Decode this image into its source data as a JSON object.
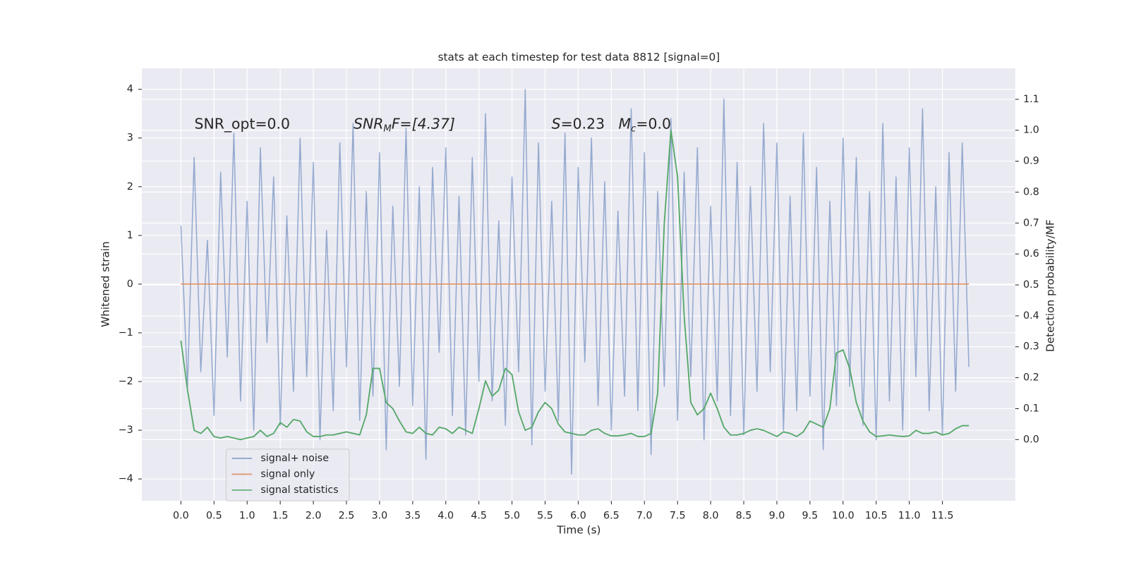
{
  "chart_data": {
    "type": "line",
    "title": "stats at each timestep for test data 8812 [signal=0]",
    "x_label": "Time (s)",
    "y_label": "Whitened strain",
    "y2_label": "Detection probability/MF",
    "annotations": [
      [
        "SNR_opt=0.0"
      ],
      [
        "SNR",
        "M",
        "F=[4.37]"
      ],
      [
        "S",
        "=0.23"
      ],
      [
        "M",
        "c",
        "=0.0"
      ]
    ],
    "x": [
      0.0,
      0.1,
      0.2,
      0.3,
      0.4,
      0.5,
      0.6,
      0.7,
      0.8,
      0.9,
      1.0,
      1.1,
      1.2,
      1.3,
      1.4,
      1.5,
      1.6,
      1.7,
      1.8,
      1.9,
      2.0,
      2.1,
      2.2,
      2.3,
      2.4,
      2.5,
      2.6,
      2.7,
      2.8,
      2.9,
      3.0,
      3.1,
      3.2,
      3.3,
      3.4,
      3.5,
      3.6,
      3.7,
      3.8,
      3.9,
      4.0,
      4.1,
      4.2,
      4.3,
      4.4,
      4.5,
      4.6,
      4.7,
      4.8,
      4.9,
      5.0,
      5.1,
      5.2,
      5.3,
      5.4,
      5.5,
      5.6,
      5.7,
      5.8,
      5.9,
      6.0,
      6.1,
      6.2,
      6.3,
      6.4,
      6.5,
      6.6,
      6.7,
      6.8,
      6.9,
      7.0,
      7.1,
      7.2,
      7.3,
      7.4,
      7.5,
      7.6,
      7.7,
      7.8,
      7.9,
      8.0,
      8.1,
      8.2,
      8.3,
      8.4,
      8.5,
      8.6,
      8.7,
      8.8,
      8.9,
      9.0,
      9.1,
      9.2,
      9.3,
      9.4,
      9.5,
      9.6,
      9.7,
      9.8,
      9.9,
      10.0,
      10.1,
      10.2,
      10.3,
      10.4,
      10.5,
      10.6,
      10.7,
      10.8,
      10.9,
      11.0,
      11.1,
      11.2,
      11.3,
      11.4,
      11.5,
      11.6,
      11.7,
      11.8,
      11.9
    ],
    "series": [
      {
        "name": "signal+ noise",
        "color": "#4c72b0",
        "values": [
          1.2,
          -2.1,
          2.6,
          -1.8,
          0.9,
          -2.7,
          2.3,
          -1.5,
          3.1,
          -2.4,
          1.7,
          -3.0,
          2.8,
          -1.2,
          2.2,
          -2.9,
          1.4,
          -2.2,
          3.0,
          -1.9,
          2.5,
          -3.2,
          1.1,
          -2.6,
          2.9,
          -1.7,
          3.3,
          -2.8,
          1.9,
          -2.3,
          2.7,
          -3.4,
          1.6,
          -2.1,
          3.2,
          -2.5,
          2.0,
          -3.6,
          2.4,
          -1.4,
          2.8,
          -2.7,
          1.8,
          -3.1,
          2.6,
          -2.0,
          3.5,
          -2.4,
          1.3,
          -2.9,
          2.2,
          -1.8,
          4.0,
          -3.3,
          2.9,
          -2.2,
          1.7,
          -2.8,
          3.1,
          -3.9,
          2.4,
          -1.6,
          3.0,
          -2.5,
          2.1,
          -3.0,
          1.5,
          -2.3,
          3.6,
          -2.6,
          2.7,
          -3.5,
          1.9,
          -2.1,
          3.4,
          -2.8,
          2.3,
          -1.9,
          2.8,
          -3.2,
          1.6,
          -2.4,
          3.8,
          -2.7,
          2.5,
          -3.1,
          2.0,
          -2.2,
          3.3,
          -1.8,
          2.9,
          -3.0,
          1.8,
          -2.6,
          3.1,
          -2.3,
          2.4,
          -3.4,
          1.7,
          -2.5,
          3.0,
          -2.1,
          2.6,
          -2.9,
          1.9,
          -3.2,
          3.3,
          -2.4,
          2.2,
          -3.0,
          2.8,
          -1.9,
          3.6,
          -2.6,
          2.0,
          -3.1,
          2.7,
          -2.2,
          2.9,
          -1.7
        ]
      },
      {
        "name": "signal only",
        "color": "#dd8452",
        "values": [
          0,
          0,
          0,
          0,
          0,
          0,
          0,
          0,
          0,
          0,
          0,
          0,
          0,
          0,
          0,
          0,
          0,
          0,
          0,
          0,
          0,
          0,
          0,
          0,
          0,
          0,
          0,
          0,
          0,
          0,
          0,
          0,
          0,
          0,
          0,
          0,
          0,
          0,
          0,
          0,
          0,
          0,
          0,
          0,
          0,
          0,
          0,
          0,
          0,
          0,
          0,
          0,
          0,
          0,
          0,
          0,
          0,
          0,
          0,
          0,
          0,
          0,
          0,
          0,
          0,
          0,
          0,
          0,
          0,
          0,
          0,
          0,
          0,
          0,
          0,
          0,
          0,
          0,
          0,
          0,
          0,
          0,
          0,
          0,
          0,
          0,
          0,
          0,
          0,
          0,
          0,
          0,
          0,
          0,
          0,
          0,
          0,
          0,
          0,
          0,
          0,
          0,
          0,
          0,
          0,
          0,
          0,
          0,
          0,
          0,
          0,
          0,
          0,
          0,
          0,
          0,
          0,
          0,
          0,
          0
        ]
      },
      {
        "name": "signal statistics",
        "color": "#55a868",
        "axis": "y2",
        "values": [
          0.32,
          0.16,
          0.03,
          0.02,
          0.04,
          0.01,
          0.005,
          0.01,
          0.005,
          0.0,
          0.005,
          0.01,
          0.03,
          0.01,
          0.02,
          0.055,
          0.04,
          0.065,
          0.06,
          0.025,
          0.01,
          0.01,
          0.015,
          0.015,
          0.02,
          0.025,
          0.02,
          0.015,
          0.08,
          0.23,
          0.23,
          0.12,
          0.1,
          0.06,
          0.025,
          0.02,
          0.04,
          0.02,
          0.015,
          0.04,
          0.035,
          0.02,
          0.04,
          0.03,
          0.02,
          0.1,
          0.19,
          0.14,
          0.16,
          0.23,
          0.21,
          0.09,
          0.03,
          0.04,
          0.09,
          0.12,
          0.1,
          0.05,
          0.025,
          0.02,
          0.015,
          0.015,
          0.03,
          0.035,
          0.02,
          0.012,
          0.012,
          0.015,
          0.02,
          0.01,
          0.01,
          0.02,
          0.15,
          0.7,
          1.0,
          0.85,
          0.4,
          0.12,
          0.08,
          0.1,
          0.15,
          0.1,
          0.04,
          0.015,
          0.015,
          0.02,
          0.03,
          0.035,
          0.03,
          0.02,
          0.01,
          0.025,
          0.02,
          0.01,
          0.025,
          0.06,
          0.05,
          0.04,
          0.1,
          0.28,
          0.29,
          0.23,
          0.12,
          0.06,
          0.025,
          0.01,
          0.012,
          0.015,
          0.012,
          0.01,
          0.012,
          0.03,
          0.02,
          0.02,
          0.025,
          0.015,
          0.02,
          0.035,
          0.045,
          0.045
        ]
      }
    ],
    "xlim": [
      -0.59,
      12.6
    ],
    "xticks": [
      {
        "value": 0,
        "label": "0.0"
      },
      0.5,
      {
        "value": 1,
        "label": "1.0"
      },
      1.5,
      {
        "value": 2,
        "label": "2.0"
      },
      2.5,
      {
        "value": 3,
        "label": "3.0"
      },
      3.5,
      {
        "value": 4,
        "label": "4.0"
      },
      4.5,
      {
        "value": 5,
        "label": "5.0"
      },
      5.5,
      {
        "value": 6,
        "label": "6.0"
      },
      6.5,
      {
        "value": 7,
        "label": "7.0"
      },
      7.5,
      {
        "value": 8,
        "label": "8.0"
      },
      8.5,
      {
        "value": 9,
        "label": "9.0"
      },
      9.5,
      {
        "value": 10,
        "label": "10.0"
      },
      10.5,
      {
        "value": 11,
        "label": "11.0"
      },
      11.5
    ],
    "ylim": [
      -4.45,
      4.43
    ],
    "yticks": [
      {
        "value": -4,
        "label": "−4"
      },
      {
        "value": -3,
        "label": "−3"
      },
      {
        "value": -2,
        "label": "−2"
      },
      {
        "value": -1,
        "label": "−1"
      },
      0,
      1,
      2,
      3,
      4
    ],
    "y2lim": [
      -0.198,
      1.2
    ],
    "y2ticks": [
      {
        "value": 0,
        "label": "0.0"
      },
      0.1,
      0.2,
      0.3,
      0.4,
      0.5,
      0.6,
      0.7,
      0.8,
      0.9,
      {
        "value": 1,
        "label": "1.0"
      },
      1.1
    ],
    "grid": true,
    "legend": "lower left"
  }
}
